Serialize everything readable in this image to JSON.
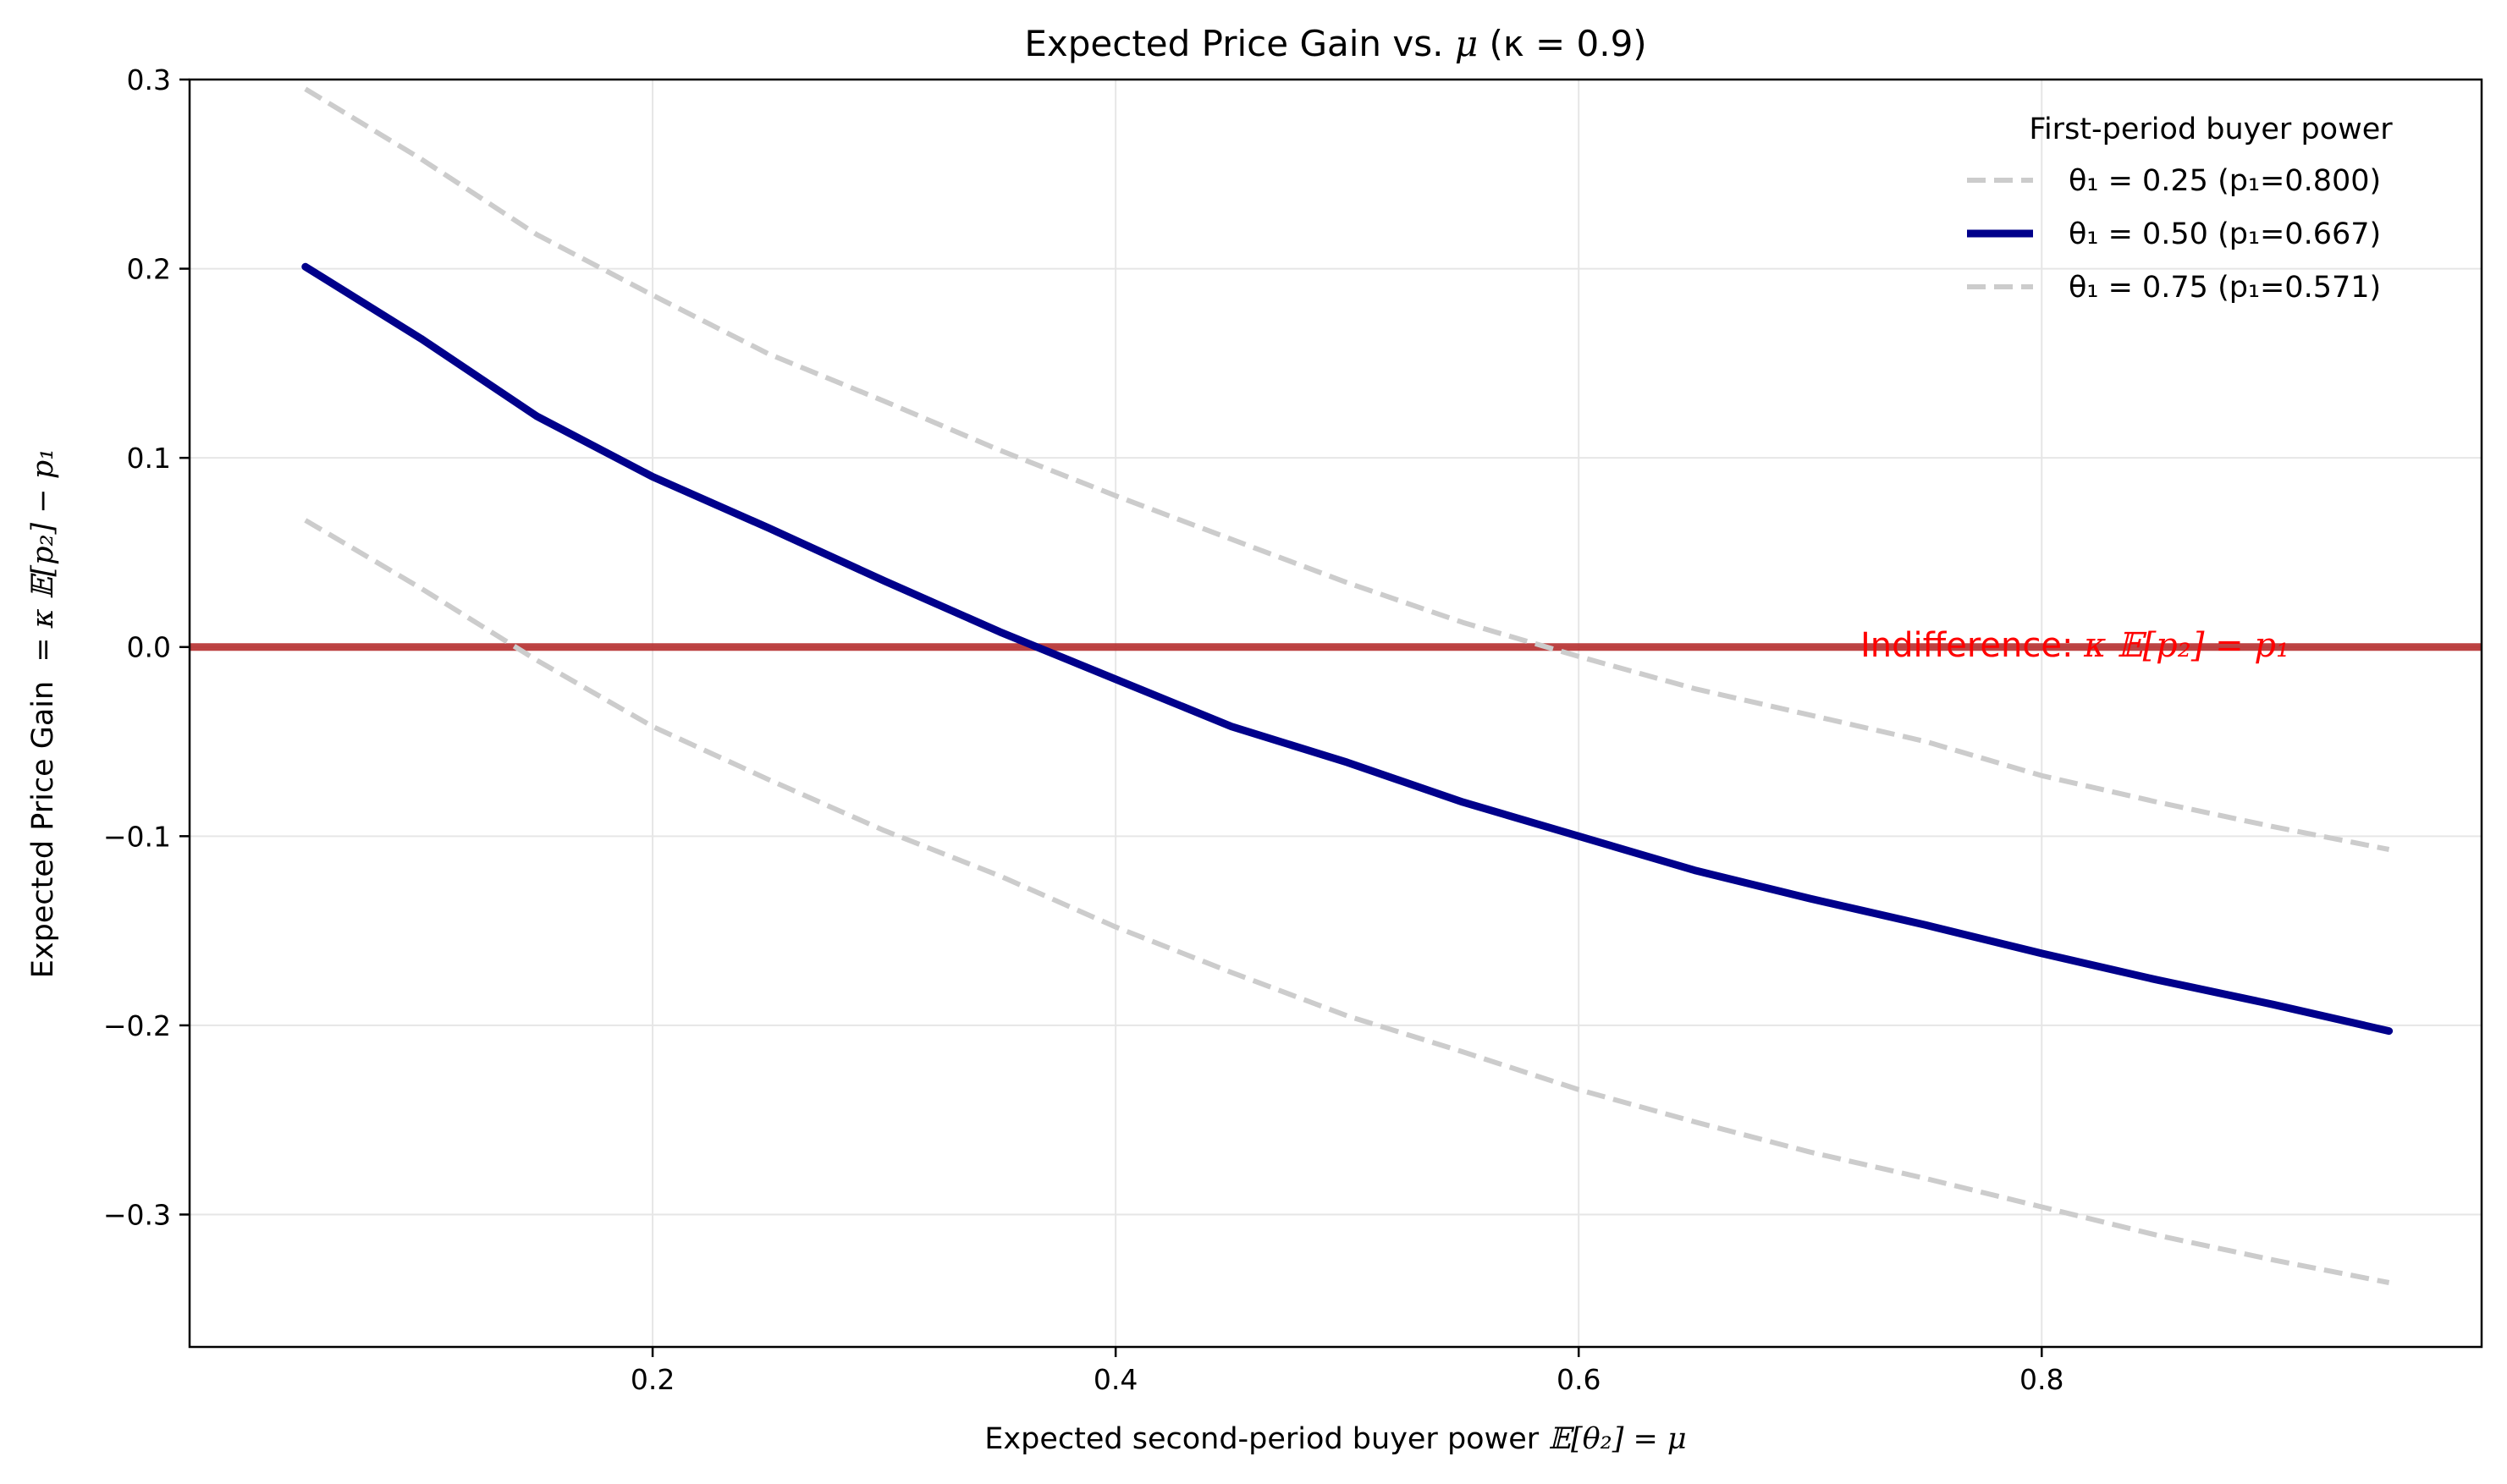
{
  "chart_data": {
    "type": "line",
    "title": {
      "prefix": "Expected Price Gain vs. ",
      "mu": "μ",
      "suffix": "  (κ = 0.9)"
    },
    "xlabel": {
      "text": "Expected second-period buyer power ",
      "math": "𝔼[θ₂] = μ"
    },
    "ylabel": {
      "text": "Expected Price Gain",
      "math": "= κ 𝔼[p₂] − p₁"
    },
    "xlim": [
      0.0,
      0.99
    ],
    "ylim": [
      -0.37,
      0.3
    ],
    "x_ticks": [
      0.2,
      0.4,
      0.6,
      0.8
    ],
    "x_tick_labels": [
      "0.2",
      "0.4",
      "0.6",
      "0.8"
    ],
    "y_ticks": [
      0.3,
      0.2,
      0.1,
      0.0,
      -0.1,
      -0.2,
      -0.3
    ],
    "y_tick_labels": [
      "0.3",
      "0.2",
      "0.1",
      "0.0",
      "−0.1",
      "−0.2",
      "−0.3"
    ],
    "grid": true,
    "legend": {
      "title": "First-period buyer power",
      "placement": "top-right"
    },
    "reference_line": {
      "y": 0.0,
      "color": "#b22222",
      "label_text": "Indifference: ",
      "label_math": "κ 𝔼[p₂] = p₁",
      "label_color": "#ff0000"
    },
    "x": [
      0.05,
      0.1,
      0.15,
      0.2,
      0.25,
      0.3,
      0.35,
      0.4,
      0.45,
      0.5,
      0.55,
      0.6,
      0.65,
      0.7,
      0.75,
      0.8,
      0.85,
      0.9,
      0.95
    ],
    "series": [
      {
        "name": "θ₁ = 0.25  (p₁=0.800)",
        "style": "dashed",
        "color": "#cccccc",
        "values": [
          0.295,
          0.258,
          0.218,
          0.186,
          0.155,
          0.13,
          0.104,
          0.08,
          0.057,
          0.034,
          0.013,
          -0.005,
          -0.022,
          -0.036,
          -0.05,
          -0.068,
          -0.082,
          -0.095,
          -0.107
        ]
      },
      {
        "name": "θ₁ = 0.50  (p₁=0.667)",
        "style": "solid",
        "color": "#00008b",
        "values": [
          0.201,
          0.163,
          0.122,
          0.09,
          0.063,
          0.035,
          0.008,
          -0.017,
          -0.042,
          -0.061,
          -0.082,
          -0.1,
          -0.118,
          -0.133,
          -0.147,
          -0.162,
          -0.176,
          -0.189,
          -0.203
        ]
      },
      {
        "name": "θ₁ = 0.75  (p₁=0.571)",
        "style": "dashed",
        "color": "#cccccc",
        "values": [
          0.067,
          0.031,
          -0.007,
          -0.042,
          -0.07,
          -0.097,
          -0.121,
          -0.148,
          -0.172,
          -0.195,
          -0.214,
          -0.234,
          -0.251,
          -0.267,
          -0.281,
          -0.296,
          -0.311,
          -0.324,
          -0.336
        ]
      }
    ]
  }
}
